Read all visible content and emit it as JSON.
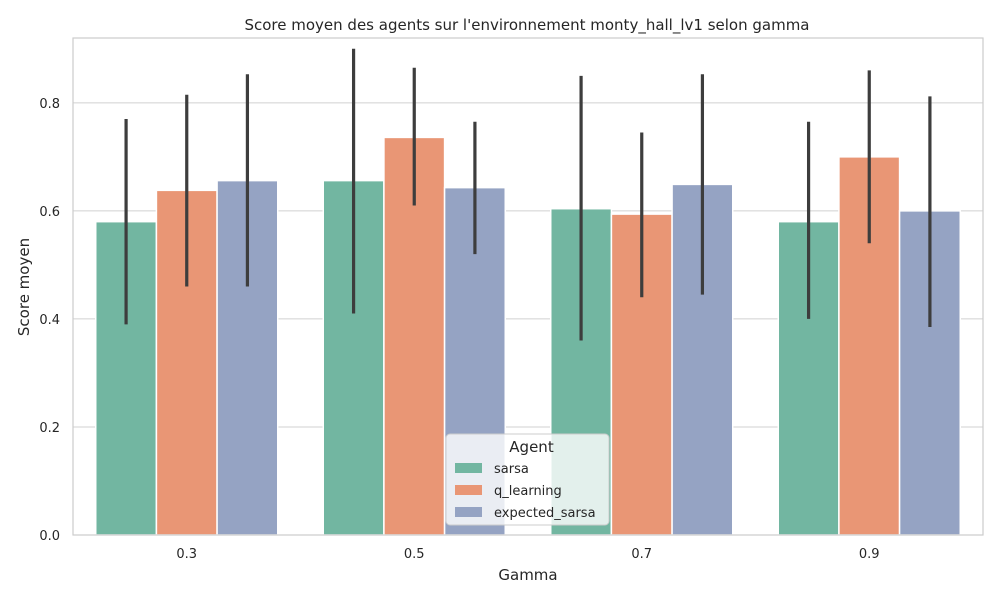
{
  "chart_data": {
    "type": "bar",
    "title": "Score moyen des agents sur l'environnement monty_hall_lv1 selon gamma",
    "xlabel": "Gamma",
    "ylabel": "Score moyen",
    "categories": [
      "0.3",
      "0.5",
      "0.7",
      "0.9"
    ],
    "ylim": [
      0,
      0.92
    ],
    "yticks": [
      "0.0",
      "0.2",
      "0.4",
      "0.6",
      "0.8"
    ],
    "grid": true,
    "legend": {
      "title": "Agent",
      "position": "bottom-center"
    },
    "series": [
      {
        "name": "sarsa",
        "color": "#72b6a1",
        "values": [
          0.58,
          0.656,
          0.604,
          0.58
        ],
        "err_low": [
          0.39,
          0.41,
          0.36,
          0.4
        ],
        "err_high": [
          0.77,
          0.9,
          0.85,
          0.765
        ]
      },
      {
        "name": "q_learning",
        "color": "#e99675",
        "values": [
          0.638,
          0.736,
          0.594,
          0.7
        ],
        "err_low": [
          0.46,
          0.61,
          0.44,
          0.54
        ],
        "err_high": [
          0.815,
          0.865,
          0.745,
          0.86
        ]
      },
      {
        "name": "expected_sarsa",
        "color": "#95a3c3",
        "values": [
          0.656,
          0.643,
          0.649,
          0.6
        ],
        "err_low": [
          0.46,
          0.52,
          0.445,
          0.385
        ],
        "err_high": [
          0.853,
          0.765,
          0.853,
          0.812
        ]
      }
    ]
  }
}
